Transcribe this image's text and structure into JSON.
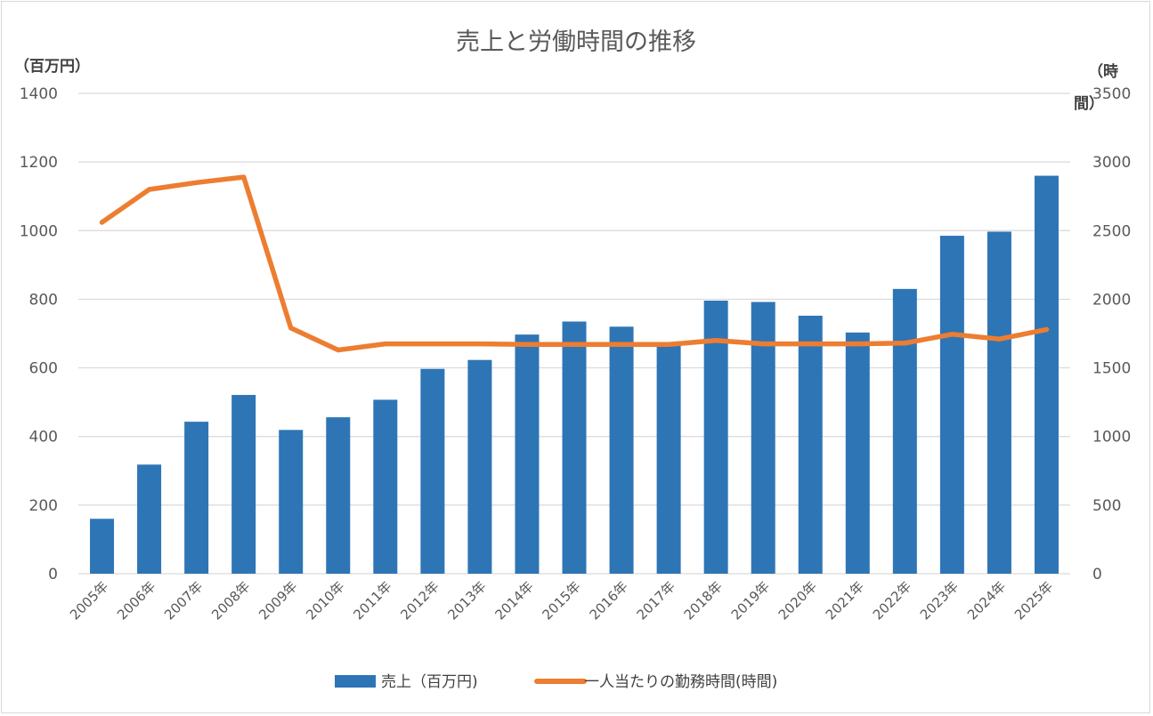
{
  "chart_data": {
    "type": "bar",
    "title": "売上と労働時間の推移",
    "categories": [
      "2005年",
      "2006年",
      "2007年",
      "2008年",
      "2009年",
      "2010年",
      "2011年",
      "2012年",
      "2013年",
      "2014年",
      "2015年",
      "2016年",
      "2017年",
      "2018年",
      "2019年",
      "2020年",
      "2021年",
      "2022年",
      "2023年",
      "2024年",
      "2025年"
    ],
    "series": [
      {
        "name": "売上（百万円)",
        "type": "bar",
        "axis": "left",
        "color": "#2e75b6",
        "values": [
          160,
          318,
          443,
          521,
          419,
          456,
          507,
          597,
          623,
          697,
          735,
          720,
          672,
          796,
          792,
          752,
          703,
          830,
          985,
          997,
          1160
        ]
      },
      {
        "name": "一人当たりの勤務時間(時間)",
        "type": "line",
        "axis": "right",
        "color": "#ed7d31",
        "values": [
          2560,
          2800,
          2850,
          2890,
          1790,
          1630,
          1675,
          1675,
          1675,
          1670,
          1670,
          1670,
          1670,
          1700,
          1675,
          1675,
          1675,
          1680,
          1745,
          1710,
          1780
        ]
      }
    ],
    "ylabel_left": "（百万円）",
    "ylabel_right": "（時間）",
    "ylim_left": [
      0,
      1400
    ],
    "ylim_right": [
      0,
      3500
    ],
    "yticks_left": [
      0,
      200,
      400,
      600,
      800,
      1000,
      1200,
      1400
    ],
    "yticks_right": [
      0,
      500,
      1000,
      1500,
      2000,
      2500,
      3000,
      3500
    ],
    "grid": true,
    "legend_position": "bottom",
    "gridline_color": "#d9d9d9"
  }
}
